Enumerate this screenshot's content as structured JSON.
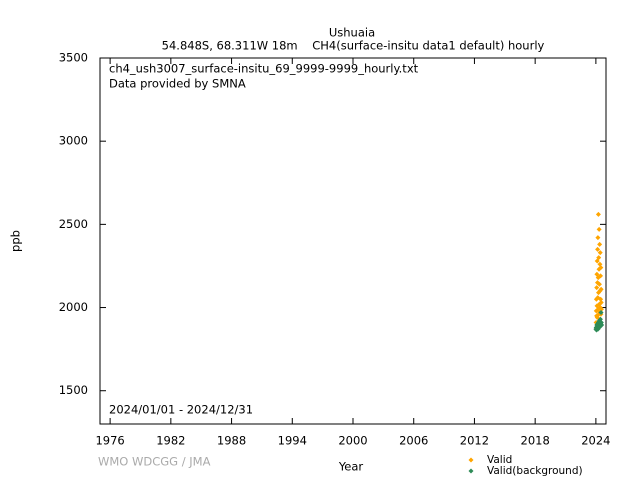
{
  "chart_data": {
    "type": "scatter",
    "title": "Ushuaia",
    "subtitle": "54.848S, 68.311W 18m    CH4(surface-insitu data1 default) hourly",
    "annotations": [
      "ch4_ush3007_surface-insitu_69_9999-9999_hourly.txt",
      "Data provided by SMNA",
      "2024/01/01 - 2024/12/31"
    ],
    "credit": "WMO WDCGG / JMA",
    "xlabel": "Year",
    "ylabel": "ppb",
    "xlim": [
      1975,
      2025
    ],
    "ylim": [
      1300,
      3500
    ],
    "xticks": [
      1976,
      1982,
      1988,
      1994,
      2000,
      2006,
      2012,
      2018,
      2024
    ],
    "yticks": [
      1500,
      2000,
      2500,
      3000,
      3500
    ],
    "series": [
      {
        "name": "Valid",
        "color": "#ffa500",
        "x": [
          2024.02,
          2024.04,
          2024.05,
          2024.07,
          2024.08,
          2024.1,
          2024.11,
          2024.13,
          2024.14,
          2024.16,
          2024.17,
          2024.19,
          2024.2,
          2024.22,
          2024.23,
          2024.25,
          2024.26,
          2024.28,
          2024.29,
          2024.31,
          2024.32,
          2024.34,
          2024.35,
          2024.37,
          2024.38,
          2024.4,
          2024.41,
          2024.43,
          2024.44,
          2024.46,
          2024.47,
          2024.49,
          2024.5,
          2024.52,
          2024.53,
          2024.55
        ],
        "values": [
          1910,
          1980,
          2050,
          1950,
          2120,
          2200,
          2010,
          2280,
          1940,
          2150,
          2350,
          2060,
          2420,
          1990,
          2180,
          2560,
          2090,
          2300,
          1960,
          2230,
          2470,
          2020,
          2140,
          2380,
          1970,
          2260,
          2100,
          2330,
          2000,
          2190,
          2050,
          2240,
          1960,
          2110,
          2030,
          1990
        ]
      },
      {
        "name": "Valid(background)",
        "color": "#2e8b57",
        "x": [
          2024.0,
          2024.03,
          2024.06,
          2024.09,
          2024.12,
          2024.15,
          2024.18,
          2024.21,
          2024.24,
          2024.27,
          2024.3,
          2024.33,
          2024.36,
          2024.39,
          2024.42,
          2024.45,
          2024.48,
          2024.51,
          2024.54,
          2024.57
        ],
        "values": [
          1870,
          1880,
          1865,
          1895,
          1875,
          1900,
          1885,
          1870,
          1910,
          1890,
          1880,
          1920,
          1895,
          1905,
          1885,
          1930,
          1900,
          1970,
          1910,
          1895
        ]
      }
    ]
  }
}
